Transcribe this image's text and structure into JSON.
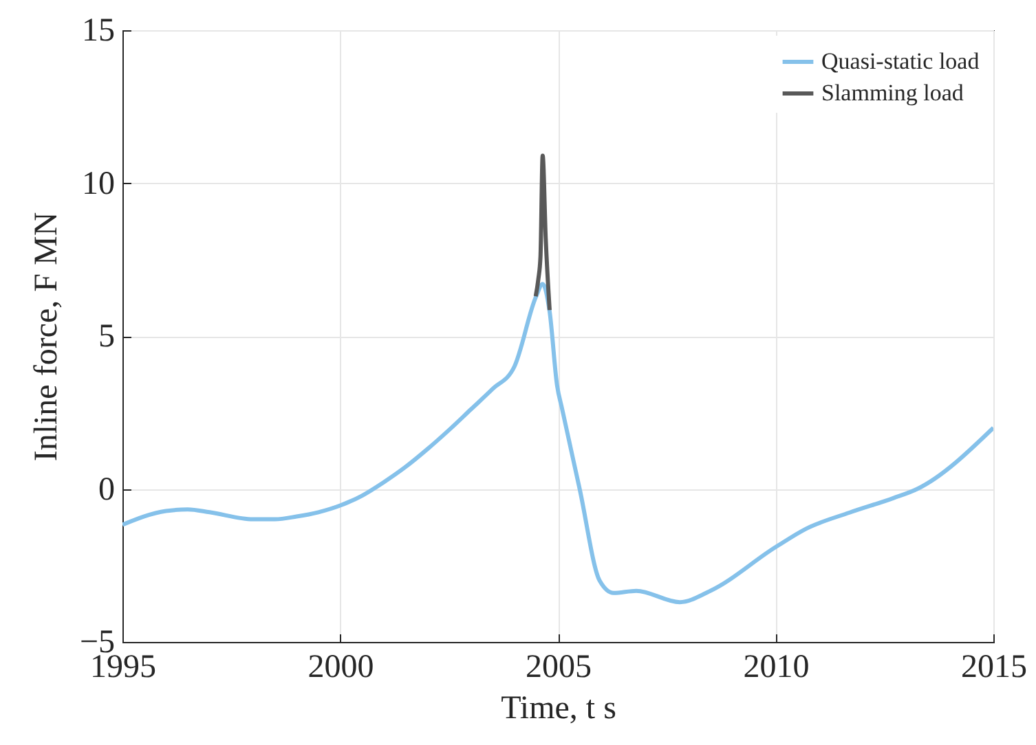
{
  "chart_data": {
    "type": "line",
    "xlabel": "Time, t s",
    "ylabel": "Inline force, F MN",
    "xlim": [
      1995,
      2015
    ],
    "xticks": [
      1995,
      2000,
      2005,
      2010,
      2015
    ],
    "ylim": [
      -5,
      15
    ],
    "yticks": [
      -5,
      0,
      5,
      10,
      15
    ],
    "grid": true,
    "legend": "top right",
    "line_style": "solid",
    "marker": "none",
    "series": [
      {
        "name": "Quasi-static load",
        "color": "#85c1ea",
        "x": [
          1995,
          1996,
          1996.5,
          1997,
          1998,
          1998.5,
          1999,
          1999.5,
          2000,
          2000.5,
          2001,
          2001.5,
          2002,
          2002.5,
          2003,
          2003.5,
          2004,
          2004.5,
          2004.65,
          2004.81,
          2004.98,
          2005.1,
          2005.5,
          2005.96,
          2006.28,
          2006.8,
          2007.8,
          2008.5,
          2010,
          2010.7,
          2011.7,
          2012.7,
          2013.25,
          2015
        ],
        "values": [
          -1.17,
          -0.72,
          -0.67,
          -0.76,
          -0.99,
          -0.99,
          -0.9,
          -0.76,
          -0.54,
          -0.22,
          0.22,
          0.72,
          1.3,
          1.93,
          2.6,
          3.27,
          4,
          6.3,
          6.7,
          5.8,
          3.4,
          2.6,
          0,
          -3.0,
          -3.4,
          -3.33,
          -3.7,
          -3.33,
          -1.9,
          -1.3,
          -0.77,
          -0.3,
          0,
          2.0
        ]
      },
      {
        "name": "Slamming load",
        "color": "#595959",
        "x": [
          2004.49,
          2004.55,
          2004.6,
          2004.65,
          2004.72,
          2004.81
        ],
        "values": [
          6.3,
          6.85,
          7.6,
          10.9,
          8.2,
          5.85
        ]
      }
    ]
  }
}
